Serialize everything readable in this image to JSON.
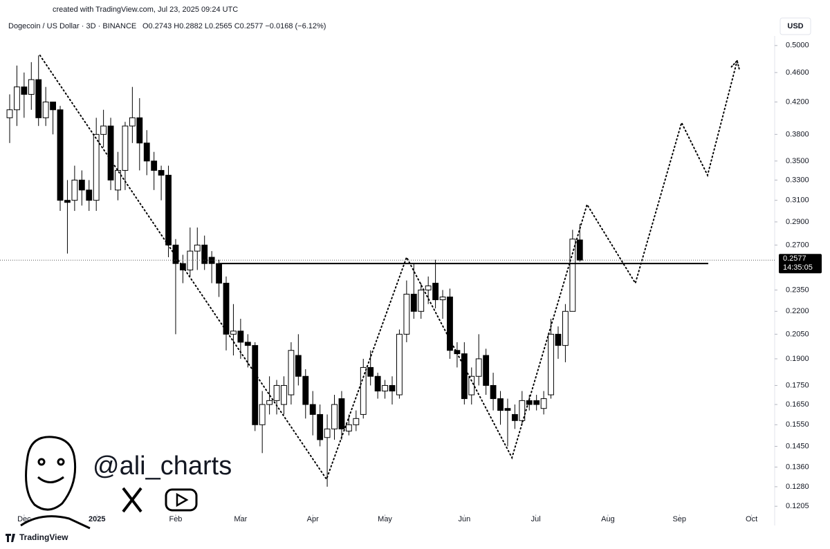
{
  "chart_data": {
    "type": "candlestick",
    "created": "created with TradingView.com, Jul 23, 2025 09:24 UTC",
    "title": "Dogecoin / US Dollar · 3D · BINANCE",
    "ohlc_text": "O0.2743 H0.2882 L0.2565 C0.2577 −0.0168 (−6.12%)",
    "currency": "USD",
    "watermark": "@ali_charts",
    "brand": "TradingView",
    "up_color": "#ffffff",
    "down_color": "#000000",
    "y_scale": "log",
    "xlim": [
      -1.34,
      106.0
    ],
    "ylim": [
      0.118,
      0.515
    ],
    "xticks": [
      {
        "value": 2,
        "label": "Dec"
      },
      {
        "value": 12.1,
        "label": "2025"
      },
      {
        "value": 23,
        "label": "Feb"
      },
      {
        "value": 32,
        "label": "Mar"
      },
      {
        "value": 42,
        "label": "Apr"
      },
      {
        "value": 52,
        "label": "May"
      },
      {
        "value": 63,
        "label": "Jun"
      },
      {
        "value": 72.9,
        "label": "Jul"
      },
      {
        "value": 82.9,
        "label": "Aug"
      },
      {
        "value": 92.8,
        "label": "Sep"
      },
      {
        "value": 102.8,
        "label": "Oct"
      }
    ],
    "yticks": [
      {
        "value": 0.5,
        "label": "0.5000"
      },
      {
        "value": 0.46,
        "label": "0.4600"
      },
      {
        "value": 0.42,
        "label": "0.4200"
      },
      {
        "value": 0.38,
        "label": "0.3800"
      },
      {
        "value": 0.35,
        "label": "0.3500"
      },
      {
        "value": 0.33,
        "label": "0.3300"
      },
      {
        "value": 0.31,
        "label": "0.3100"
      },
      {
        "value": 0.29,
        "label": "0.2900"
      },
      {
        "value": 0.27,
        "label": "0.2700"
      },
      {
        "value": 0.235,
        "label": "0.2350"
      },
      {
        "value": 0.22,
        "label": "0.2200"
      },
      {
        "value": 0.205,
        "label": "0.2050"
      },
      {
        "value": 0.19,
        "label": "0.1900"
      },
      {
        "value": 0.175,
        "label": "0.1750"
      },
      {
        "value": 0.165,
        "label": "0.1650"
      },
      {
        "value": 0.155,
        "label": "0.1550"
      },
      {
        "value": 0.145,
        "label": "0.1450"
      },
      {
        "value": 0.136,
        "label": "0.1360"
      },
      {
        "value": 0.128,
        "label": "0.1280"
      },
      {
        "value": 0.1205,
        "label": "0.1205"
      }
    ],
    "x": [
      0,
      1,
      2,
      3,
      4,
      5,
      6,
      7,
      8,
      9,
      10,
      11,
      12,
      13,
      14,
      15,
      16,
      17,
      18,
      19,
      20,
      21,
      22,
      23,
      24,
      25,
      26,
      27,
      28,
      29,
      30,
      31,
      32,
      33,
      34,
      35,
      36,
      37,
      38,
      39,
      40,
      41,
      42,
      43,
      44,
      45,
      46,
      47,
      48,
      49,
      50,
      51,
      52,
      53,
      54,
      55,
      56,
      57,
      58,
      59,
      60,
      61,
      62,
      63,
      64,
      65,
      66,
      67,
      68,
      69,
      70,
      71,
      72,
      73,
      74,
      75,
      76,
      77,
      78,
      79
    ],
    "open": [
      0.4,
      0.41,
      0.44,
      0.43,
      0.45,
      0.4,
      0.42,
      0.41,
      0.31,
      0.31,
      0.33,
      0.32,
      0.31,
      0.38,
      0.39,
      0.32,
      0.34,
      0.39,
      0.4,
      0.37,
      0.35,
      0.34,
      0.335,
      0.27,
      0.255,
      0.25,
      0.265,
      0.27,
      0.26,
      0.255,
      0.24,
      0.205,
      0.207,
      0.2,
      0.198,
      0.155,
      0.165,
      0.167,
      0.165,
      0.17,
      0.192,
      0.18,
      0.165,
      0.16,
      0.149,
      0.153,
      0.168,
      0.152,
      0.155,
      0.16,
      0.185,
      0.18,
      0.172,
      0.175,
      0.17,
      0.205,
      0.232,
      0.22,
      0.235,
      0.24,
      0.228,
      0.23,
      0.195,
      0.193,
      0.17,
      0.18,
      0.192,
      0.175,
      0.168,
      0.163,
      0.16,
      0.157,
      0.167,
      0.167,
      0.163,
      0.17,
      0.205,
      0.198,
      0.22,
      0.2743
    ],
    "high": [
      0.43,
      0.47,
      0.46,
      0.475,
      0.485,
      0.44,
      0.42,
      0.415,
      0.33,
      0.345,
      0.34,
      0.33,
      0.4,
      0.41,
      0.4,
      0.36,
      0.395,
      0.44,
      0.425,
      0.385,
      0.36,
      0.345,
      0.345,
      0.275,
      0.262,
      0.285,
      0.285,
      0.278,
      0.265,
      0.258,
      0.245,
      0.225,
      0.215,
      0.205,
      0.2,
      0.172,
      0.18,
      0.178,
      0.18,
      0.2,
      0.205,
      0.184,
      0.172,
      0.165,
      0.16,
      0.17,
      0.172,
      0.16,
      0.162,
      0.19,
      0.195,
      0.182,
      0.178,
      0.18,
      0.208,
      0.242,
      0.255,
      0.24,
      0.245,
      0.258,
      0.235,
      0.236,
      0.2,
      0.2,
      0.185,
      0.205,
      0.196,
      0.182,
      0.172,
      0.168,
      0.165,
      0.172,
      0.17,
      0.17,
      0.172,
      0.215,
      0.21,
      0.225,
      0.283,
      0.2882
    ],
    "low": [
      0.37,
      0.39,
      0.4,
      0.41,
      0.39,
      0.39,
      0.38,
      0.3,
      0.263,
      0.3,
      0.305,
      0.3,
      0.3,
      0.365,
      0.32,
      0.31,
      0.32,
      0.37,
      0.34,
      0.335,
      0.32,
      0.31,
      0.26,
      0.205,
      0.24,
      0.245,
      0.25,
      0.25,
      0.24,
      0.23,
      0.195,
      0.192,
      0.19,
      0.185,
      0.152,
      0.142,
      0.16,
      0.16,
      0.16,
      0.165,
      0.175,
      0.158,
      0.15,
      0.145,
      0.128,
      0.148,
      0.148,
      0.15,
      0.152,
      0.158,
      0.175,
      0.168,
      0.168,
      0.165,
      0.168,
      0.2,
      0.215,
      0.215,
      0.225,
      0.222,
      0.215,
      0.19,
      0.185,
      0.165,
      0.165,
      0.175,
      0.17,
      0.162,
      0.155,
      0.145,
      0.153,
      0.155,
      0.162,
      0.162,
      0.16,
      0.168,
      0.19,
      0.188,
      0.22,
      0.2565
    ],
    "close": [
      0.41,
      0.44,
      0.43,
      0.45,
      0.4,
      0.42,
      0.41,
      0.31,
      0.308,
      0.33,
      0.32,
      0.31,
      0.38,
      0.39,
      0.33,
      0.34,
      0.39,
      0.4,
      0.37,
      0.35,
      0.34,
      0.335,
      0.27,
      0.255,
      0.25,
      0.265,
      0.27,
      0.255,
      0.255,
      0.24,
      0.205,
      0.207,
      0.2,
      0.198,
      0.155,
      0.165,
      0.167,
      0.175,
      0.175,
      0.195,
      0.18,
      0.165,
      0.16,
      0.148,
      0.153,
      0.165,
      0.153,
      0.155,
      0.158,
      0.185,
      0.18,
      0.172,
      0.175,
      0.172,
      0.205,
      0.232,
      0.22,
      0.235,
      0.238,
      0.228,
      0.23,
      0.195,
      0.193,
      0.168,
      0.18,
      0.19,
      0.175,
      0.168,
      0.162,
      0.162,
      0.157,
      0.167,
      0.165,
      0.165,
      0.168,
      0.205,
      0.198,
      0.22,
      0.275,
      0.2577
    ],
    "current_price": {
      "value": 0.2577,
      "label": "0.2577"
    },
    "countdown": "14:35:05",
    "resistance": {
      "x": [
        29.1,
        96.8
      ],
      "y": [
        0.255,
        0.255
      ]
    },
    "projection": {
      "x": [
        4.2,
        43.9,
        55.0,
        69.6,
        80.0,
        86.7,
        93.1,
        96.7,
        100.8
      ],
      "y": [
        0.485,
        0.131,
        0.26,
        0.14,
        0.306,
        0.24,
        0.394,
        0.335,
        0.477
      ]
    }
  }
}
